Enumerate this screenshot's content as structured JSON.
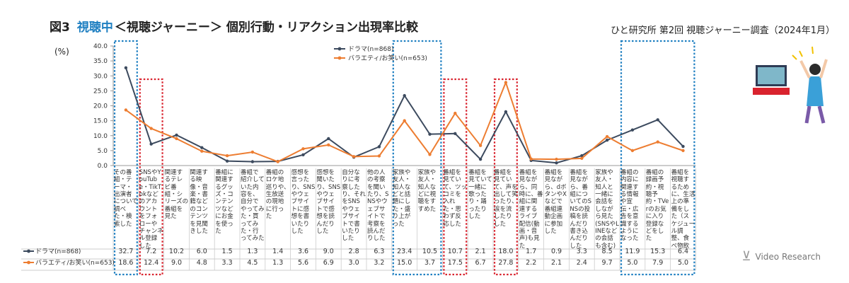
{
  "header": {
    "fig": "図3",
    "accent": "視聴中",
    "title_rest": "＜視聴ジャーニー＞ 個別行動・リアクション出現率比較"
  },
  "source": "ひと研究所 第2回 視聴ジャーニー調査（2024年1月）",
  "unit_label": "(%)",
  "logo_text": "Video Research",
  "colors": {
    "drama": "#3c4a5e",
    "variety": "#ed7d31",
    "blue_box": "#1e7fc1",
    "red_box": "#d9232e"
  },
  "chart_data": {
    "type": "line",
    "ylim": [
      0,
      40
    ],
    "yticks": [
      "0.0",
      "5.0",
      "10.0",
      "15.0",
      "20.0",
      "25.0",
      "30.0",
      "35.0",
      "40.0"
    ],
    "categories": [
      "その番組・テーマ・出演者について調べた・検索した",
      "SNSやYouTube・TikTokなどのアカウントをフォローやチャンネル登録した",
      "関連するテレビ番組・シリーズの番組を見た",
      "関連する映像・音楽・書籍などのコンテンツを見聞きした",
      "番組に関連するグッズ・コンテンツなどにお金を使った",
      "番組で紹介していた内容を、自分でやってみた・買ってみた・行ってみた",
      "番組のロケ地巡りや、生放送の現地に行った",
      "感想を言ったり、SNSやウェブサイトに感想を書いたりした",
      "感想を聞いたり、SNSやウェブサイトで感想を読んだりした",
      "自分なりに考察したり、それをSNSやウェブサイトで書いたりした",
      "他の人の考察を聞いたり、SNSやウェブサイトで考察を読んだりした",
      "家族や友人・知人などと話題にした・盛り上がった",
      "家族や友人・知人などに視聴をすすめた",
      "番組を見ていて、ツッコミを入れた・思わず反応した",
      "番組を見ていて一緒に歌ったり・踊ったりした",
      "番組を見ていて、声を出して笑ったり、涙を流したりした",
      "番組を見ながら、同時に、番組に関連するライブ配信(動画・音声)も見た",
      "番組を見ながら、dボタンやXなどで番組連動企画に参加した",
      "番組を見ながら、番組についてのSNSの投稿を読んだり書き込んだりした",
      "家族や友人・知人と一緒に会話をしながら見た(SNSやLINEなどの会話も含む)",
      "番組の内容に関連する情報や宣伝・広告を意識するようになった",
      "番組の録画予約・視聴予約・TVerのお気に入り登録などをした",
      "番組を視聴するために、生活上の準備をした（スケジュール調整、食べ物飲み物購入など）"
    ],
    "series": [
      {
        "name": "ドラマ(n=868)",
        "label": "ドラマ(n=868)",
        "color": "#3c4a5e",
        "values": [
          32.7,
          7.2,
          10.2,
          6.0,
          1.5,
          1.3,
          1.4,
          3.6,
          9.0,
          2.8,
          6.3,
          23.4,
          10.5,
          10.7,
          2.1,
          18.0,
          1.7,
          0.9,
          3.3,
          8.5,
          11.9,
          15.3,
          6.4
        ],
        "display": [
          "32.7",
          "7.2",
          "10.2",
          "6.0",
          "1.5",
          "1.3",
          "1.4",
          "3.6",
          "9.0",
          "2.8",
          "6.3",
          "23.4",
          "10.5",
          "10.7",
          "2.1",
          "18.0",
          "1.7",
          "0.9",
          "3.3",
          "8.5",
          "11.9",
          "15.3",
          "6.4"
        ]
      },
      {
        "name": "バラエティ/お笑い(n=653)",
        "label": "バラエティ/お笑い(n=653)",
        "color": "#ed7d31",
        "values": [
          18.6,
          12.4,
          9.0,
          4.8,
          3.3,
          4.5,
          1.3,
          5.6,
          6.9,
          3.0,
          3.2,
          15.0,
          3.7,
          17.5,
          6.7,
          27.8,
          2.2,
          2.1,
          2.4,
          9.7,
          5.0,
          7.9,
          5.0
        ],
        "display": [
          "18.6",
          "12.4",
          "9.0",
          "4.8",
          "3.3",
          "4.5",
          "1.3",
          "5.6",
          "6.9",
          "3.0",
          "3.2",
          "15.0",
          "3.7",
          "17.5",
          "6.7",
          "27.8",
          "2.2",
          "2.1",
          "2.4",
          "9.7",
          "5.0",
          "7.9",
          "5.0"
        ]
      }
    ],
    "highlights": [
      {
        "color": "blue",
        "categories": [
          0
        ]
      },
      {
        "color": "red",
        "categories": [
          1
        ]
      },
      {
        "color": "blue",
        "categories": [
          11,
          12
        ]
      },
      {
        "color": "red",
        "categories": [
          13
        ]
      },
      {
        "color": "red",
        "categories": [
          15
        ]
      },
      {
        "color": "blue",
        "categories": [
          20,
          21,
          22
        ]
      }
    ],
    "legend_position": "top-center",
    "grid": false
  }
}
